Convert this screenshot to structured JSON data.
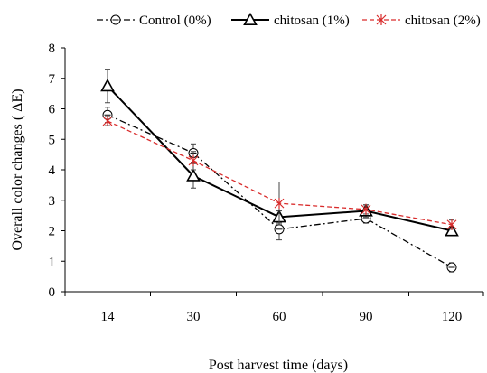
{
  "chart_data": {
    "type": "line",
    "xlabel": "Post harvest time (days)",
    "ylabel": "Overall color changes ( ΔE)",
    "categories": [
      "14",
      "30",
      "60",
      "90",
      "120"
    ],
    "ylim": [
      0,
      8
    ],
    "yticks": [
      "0",
      "1",
      "2",
      "3",
      "4",
      "5",
      "6",
      "7",
      "8"
    ],
    "grid": false,
    "legend_position": "top",
    "series": [
      {
        "name": "Control (0%)",
        "values": [
          5.8,
          4.55,
          2.05,
          2.4,
          0.8
        ],
        "errors": [
          0.25,
          0.3,
          0.35,
          0.15,
          0.15
        ],
        "color": "#000000",
        "line_style": "dash-dot",
        "marker": "circle-line"
      },
      {
        "name": "chitosan (1%)",
        "values": [
          6.75,
          3.8,
          2.45,
          2.65,
          2.0
        ],
        "errors": [
          0.55,
          0.4,
          0.2,
          0.2,
          0.15
        ],
        "color": "#000000",
        "line_style": "solid",
        "marker": "triangle"
      },
      {
        "name": "chitosan (2%)",
        "values": [
          5.6,
          4.3,
          2.9,
          2.7,
          2.2
        ],
        "errors": [
          0.15,
          0.3,
          0.7,
          0.15,
          0.15
        ],
        "color": "#d92b2b",
        "line_style": "dashed",
        "marker": "asterisk"
      }
    ]
  }
}
